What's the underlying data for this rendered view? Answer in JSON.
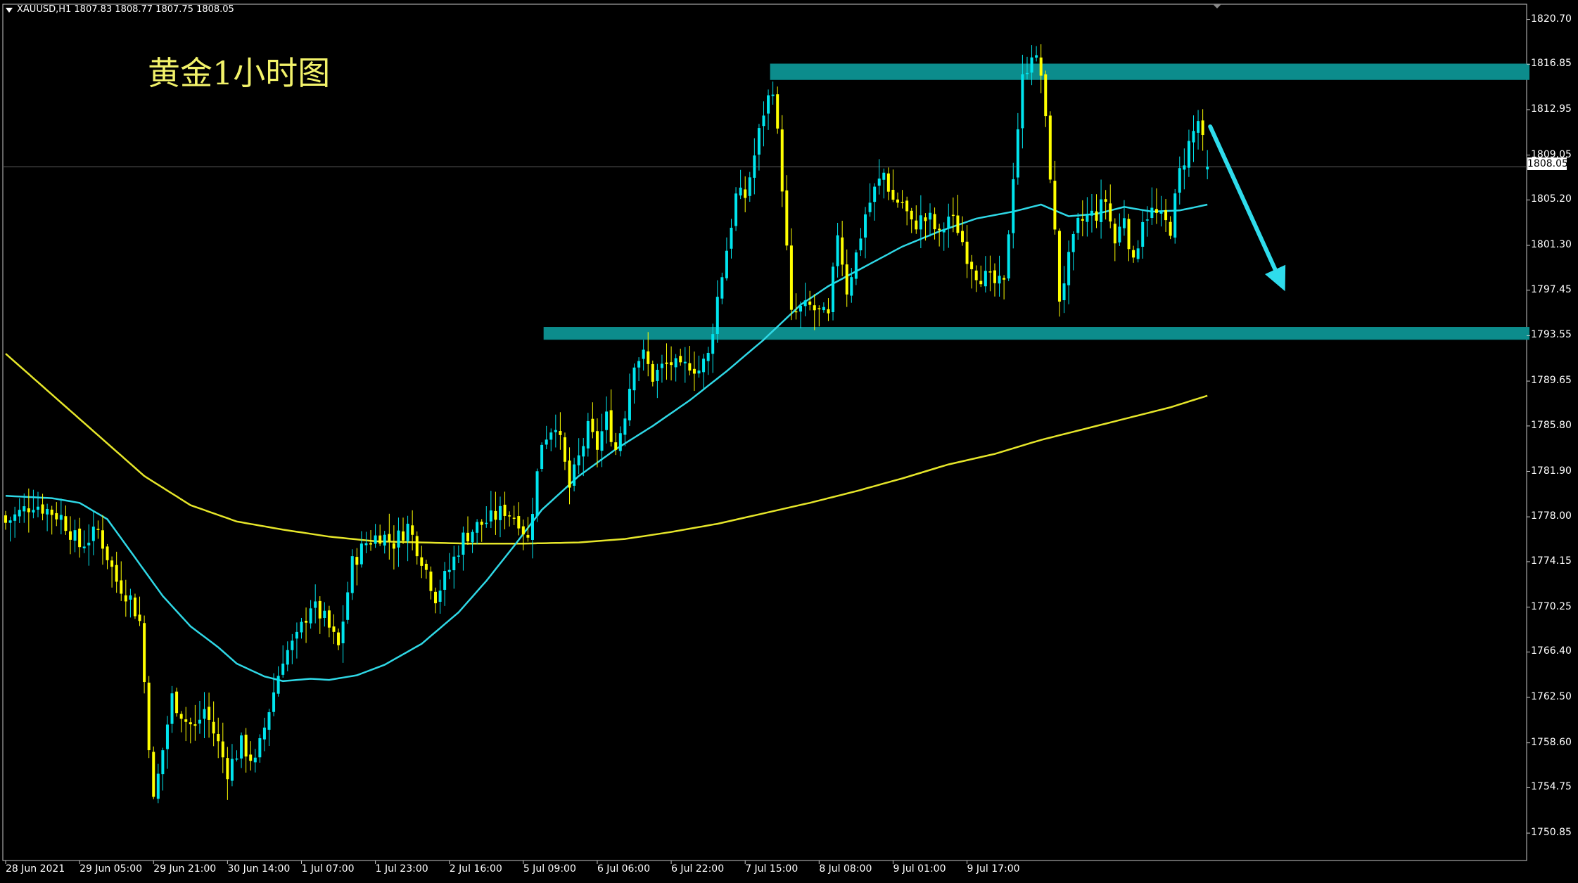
{
  "header": {
    "symbol_info": "XAUUSD,H1  1807.83 1808.77 1807.75 1808.05"
  },
  "title": "黄金1小时图",
  "current_price": "1808.05",
  "colors": {
    "background": "#000000",
    "bull": "#00e5ee",
    "bear": "#ffff00",
    "ma_fast": "#2fd8e6",
    "ma_slow": "#e6e62a",
    "zone": "#0c8c8c",
    "arrow": "#2fdcec"
  },
  "chart_data": {
    "type": "candlestick",
    "symbol": "XAUUSD",
    "timeframe": "H1",
    "ylim": [
      1748.5,
      1822.0
    ],
    "y_ticks": [
      "1820.70",
      "1816.85",
      "1812.95",
      "1809.05",
      "1805.20",
      "1801.30",
      "1797.45",
      "1793.55",
      "1789.65",
      "1785.80",
      "1781.90",
      "1778.00",
      "1774.15",
      "1770.25",
      "1766.40",
      "1762.50",
      "1758.60",
      "1754.75",
      "1750.85"
    ],
    "x_ticks": [
      "28 Jun 2021",
      "29 Jun 05:00",
      "29 Jun 21:00",
      "30 Jun 14:00",
      "1 Jul 07:00",
      "1 Jul 23:00",
      "2 Jul 16:00",
      "5 Jul 09:00",
      "6 Jul 06:00",
      "6 Jul 22:00",
      "7 Jul 15:00",
      "8 Jul 08:00",
      "9 Jul 01:00",
      "9 Jul 17:00"
    ],
    "close_anchors": [
      [
        0,
        1777.5
      ],
      [
        6,
        1779.2
      ],
      [
        12,
        1778.0
      ],
      [
        16,
        1775.5
      ],
      [
        20,
        1776.8
      ],
      [
        24,
        1772.5
      ],
      [
        27,
        1771.0
      ],
      [
        29,
        1769.0
      ],
      [
        32,
        1753.5
      ],
      [
        36,
        1762.5
      ],
      [
        39,
        1760.5
      ],
      [
        41,
        1759.8
      ],
      [
        43,
        1761.5
      ],
      [
        46,
        1758.5
      ],
      [
        48,
        1756.2
      ],
      [
        51,
        1758.5
      ],
      [
        54,
        1756.8
      ],
      [
        57,
        1761.5
      ],
      [
        60,
        1766.0
      ],
      [
        63,
        1767.5
      ],
      [
        66,
        1770.5
      ],
      [
        69,
        1769.2
      ],
      [
        72,
        1766.8
      ],
      [
        75,
        1774.0
      ],
      [
        78,
        1775.8
      ],
      [
        81,
        1776.5
      ],
      [
        84,
        1775.8
      ],
      [
        87,
        1777.2
      ],
      [
        90,
        1774.5
      ],
      [
        93,
        1771.2
      ],
      [
        96,
        1773.5
      ],
      [
        99,
        1776.2
      ],
      [
        102,
        1777.2
      ],
      [
        105,
        1777.8
      ],
      [
        108,
        1778.6
      ],
      [
        111,
        1777.8
      ],
      [
        113,
        1776.0
      ],
      [
        116,
        1784.5
      ],
      [
        119,
        1786.2
      ],
      [
        122,
        1780.5
      ],
      [
        124,
        1783.0
      ],
      [
        126,
        1785.5
      ],
      [
        128,
        1784.0
      ],
      [
        130,
        1786.5
      ],
      [
        132,
        1783.8
      ],
      [
        134,
        1787.0
      ],
      [
        136,
        1791.5
      ],
      [
        138,
        1791.8
      ],
      [
        140,
        1790.0
      ],
      [
        142,
        1790.8
      ],
      [
        144,
        1791.2
      ],
      [
        146,
        1790.5
      ],
      [
        148,
        1791.2
      ],
      [
        150,
        1790.6
      ],
      [
        152,
        1791.8
      ],
      [
        154,
        1796.8
      ],
      [
        156,
        1801.0
      ],
      [
        158,
        1805.5
      ],
      [
        160,
        1805.5
      ],
      [
        162,
        1809.0
      ],
      [
        164,
        1812.8
      ],
      [
        166,
        1815.0
      ],
      [
        168,
        1806.5
      ],
      [
        170,
        1795.2
      ],
      [
        172,
        1795.8
      ],
      [
        174,
        1796.0
      ],
      [
        176,
        1795.5
      ],
      [
        178,
        1795.0
      ],
      [
        180,
        1802.5
      ],
      [
        182,
        1797.5
      ],
      [
        184,
        1800.5
      ],
      [
        186,
        1804.0
      ],
      [
        188,
        1806.0
      ],
      [
        190,
        1807.5
      ],
      [
        192,
        1805.2
      ],
      [
        194,
        1805.0
      ],
      [
        196,
        1803.0
      ],
      [
        198,
        1803.5
      ],
      [
        200,
        1803.5
      ],
      [
        202,
        1802.0
      ],
      [
        204,
        1803.8
      ],
      [
        206,
        1802.8
      ],
      [
        208,
        1800.5
      ],
      [
        210,
        1799.0
      ],
      [
        212,
        1798.5
      ],
      [
        214,
        1798.0
      ],
      [
        216,
        1797.8
      ],
      [
        218,
        1807.5
      ],
      [
        220,
        1815.5
      ],
      [
        222,
        1818.0
      ],
      [
        224,
        1816.0
      ],
      [
        226,
        1807.5
      ],
      [
        228,
        1796.8
      ],
      [
        230,
        1800.0
      ],
      [
        232,
        1803.0
      ],
      [
        234,
        1803.8
      ],
      [
        236,
        1804.0
      ],
      [
        238,
        1805.2
      ],
      [
        240,
        1801.5
      ],
      [
        242,
        1804.0
      ],
      [
        244,
        1799.5
      ],
      [
        246,
        1803.8
      ],
      [
        248,
        1804.2
      ],
      [
        250,
        1803.5
      ],
      [
        252,
        1802.8
      ],
      [
        254,
        1807.5
      ],
      [
        256,
        1810.0
      ],
      [
        258,
        1812.0
      ],
      [
        260,
        1808.05
      ]
    ],
    "last_ohlc": {
      "open": 1807.83,
      "high": 1808.77,
      "low": 1807.75,
      "close": 1808.05
    },
    "ma_fast": {
      "period_label": "MA (cyan)",
      "points": [
        [
          0,
          1779.8
        ],
        [
          10,
          1779.6
        ],
        [
          16,
          1779.2
        ],
        [
          22,
          1777.8
        ],
        [
          28,
          1774.5
        ],
        [
          34,
          1771.2
        ],
        [
          40,
          1768.6
        ],
        [
          46,
          1766.8
        ],
        [
          50,
          1765.4
        ],
        [
          56,
          1764.3
        ],
        [
          60,
          1763.9
        ],
        [
          66,
          1764.1
        ],
        [
          70,
          1764.0
        ],
        [
          76,
          1764.4
        ],
        [
          82,
          1765.3
        ],
        [
          90,
          1767.1
        ],
        [
          98,
          1769.8
        ],
        [
          104,
          1772.5
        ],
        [
          110,
          1775.5
        ],
        [
          116,
          1778.6
        ],
        [
          124,
          1781.5
        ],
        [
          132,
          1783.8
        ],
        [
          140,
          1785.8
        ],
        [
          148,
          1788.0
        ],
        [
          156,
          1790.5
        ],
        [
          164,
          1793.2
        ],
        [
          172,
          1796.2
        ],
        [
          178,
          1797.8
        ],
        [
          186,
          1799.5
        ],
        [
          194,
          1801.2
        ],
        [
          202,
          1802.5
        ],
        [
          210,
          1803.6
        ],
        [
          218,
          1804.2
        ],
        [
          224,
          1804.8
        ],
        [
          230,
          1803.8
        ],
        [
          236,
          1804.0
        ],
        [
          242,
          1804.6
        ],
        [
          248,
          1804.2
        ],
        [
          254,
          1804.3
        ],
        [
          260,
          1804.8
        ]
      ]
    },
    "ma_slow": {
      "period_label": "MA (yellow)",
      "points": [
        [
          0,
          1792.0
        ],
        [
          10,
          1788.5
        ],
        [
          20,
          1785.0
        ],
        [
          30,
          1781.5
        ],
        [
          40,
          1779.0
        ],
        [
          50,
          1777.6
        ],
        [
          60,
          1776.9
        ],
        [
          70,
          1776.3
        ],
        [
          80,
          1775.9
        ],
        [
          90,
          1775.8
        ],
        [
          100,
          1775.7
        ],
        [
          112,
          1775.7
        ],
        [
          124,
          1775.8
        ],
        [
          134,
          1776.1
        ],
        [
          144,
          1776.7
        ],
        [
          154,
          1777.4
        ],
        [
          164,
          1778.3
        ],
        [
          174,
          1779.2
        ],
        [
          184,
          1780.2
        ],
        [
          194,
          1781.3
        ],
        [
          204,
          1782.5
        ],
        [
          214,
          1783.4
        ],
        [
          224,
          1784.6
        ],
        [
          234,
          1785.6
        ],
        [
          244,
          1786.6
        ],
        [
          252,
          1787.4
        ],
        [
          260,
          1788.4
        ]
      ]
    },
    "zones": [
      {
        "from": 1815.5,
        "to": 1816.9,
        "x_start": 166
      },
      {
        "from": 1793.2,
        "to": 1794.3,
        "x_start": 117
      }
    ],
    "projection_arrow": {
      "from": [
        260,
        1811.5
      ],
      "to": [
        276,
        1797.8
      ]
    }
  }
}
